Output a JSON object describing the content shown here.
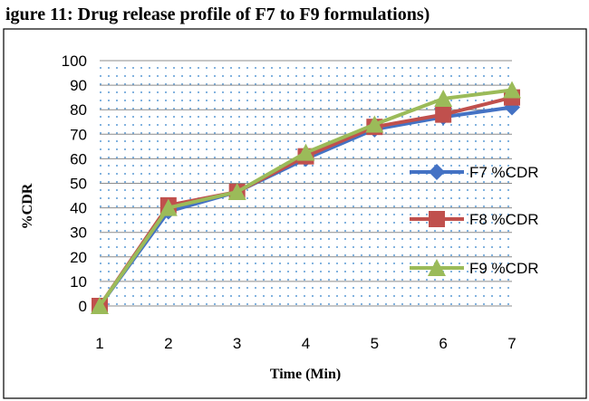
{
  "header_fragment": "igure 11: Drug release profile of F7 to F9 formulations)",
  "chart_data": {
    "type": "line",
    "title": "",
    "xlabel": "Time (Min)",
    "ylabel": "%CDR",
    "categories": [
      "1",
      "2",
      "3",
      "4",
      "5",
      "6",
      "7"
    ],
    "ylim": [
      0,
      100
    ],
    "yticks": [
      0,
      10,
      20,
      30,
      40,
      50,
      60,
      70,
      80,
      90,
      100
    ],
    "grid": true,
    "legend_position": "right",
    "series": [
      {
        "name": "F7 %CDR",
        "color": "#4472C4",
        "marker": "diamond",
        "values": [
          0,
          38.5,
          46.5,
          60,
          72,
          77,
          81
        ]
      },
      {
        "name": "F8 %CDR",
        "color": "#C0504D",
        "marker": "square",
        "values": [
          0,
          41,
          46.5,
          61,
          73,
          78,
          85
        ]
      },
      {
        "name": "F9 %CDR",
        "color": "#9BBB59",
        "marker": "triangle",
        "values": [
          0,
          40,
          46.5,
          62.5,
          74,
          84.5,
          88
        ]
      }
    ]
  }
}
